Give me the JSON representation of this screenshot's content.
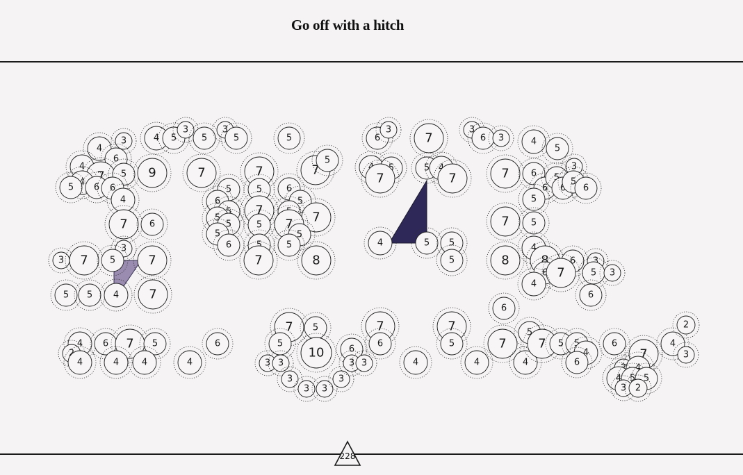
{
  "header": {
    "title": "Go off with a hitch"
  },
  "score": {
    "value": "228"
  },
  "colors": {
    "background": "#f5f3f4",
    "ink": "#1a1a1a",
    "selected_fill": "#2e2858",
    "light_fill": "#9a8bb0"
  },
  "nodes": [
    [
      178,
      203,
      "3"
    ],
    [
      143,
      214,
      "4"
    ],
    [
      167,
      229,
      "6"
    ],
    [
      118,
      240,
      "4"
    ],
    [
      145,
      254,
      "7"
    ],
    [
      178,
      251,
      "5"
    ],
    [
      118,
      263,
      "4"
    ],
    [
      102,
      270,
      "5"
    ],
    [
      139,
      270,
      "6"
    ],
    [
      162,
      271,
      "6"
    ],
    [
      177,
      288,
      "4"
    ],
    [
      219,
      249,
      "9"
    ],
    [
      225,
      199,
      "4"
    ],
    [
      250,
      199,
      "5"
    ],
    [
      267,
      187,
      "3"
    ],
    [
      294,
      199,
      "5"
    ],
    [
      324,
      187,
      "3"
    ],
    [
      340,
      199,
      "5"
    ],
    [
      416,
      199,
      "5"
    ],
    [
      290,
      249,
      "7"
    ],
    [
      373,
      247,
      "7"
    ],
    [
      454,
      245,
      "7"
    ],
    [
      471,
      231,
      "5"
    ],
    [
      329,
      273,
      "5"
    ],
    [
      373,
      273,
      "5"
    ],
    [
      416,
      272,
      "6"
    ],
    [
      313,
      290,
      "6"
    ],
    [
      432,
      290,
      "5"
    ],
    [
      329,
      305,
      "5"
    ],
    [
      373,
      303,
      "7"
    ],
    [
      416,
      305,
      "5"
    ],
    [
      313,
      314,
      "5"
    ],
    [
      455,
      313,
      "7"
    ],
    [
      329,
      323,
      "5"
    ],
    [
      373,
      324,
      "5"
    ],
    [
      416,
      323,
      "7"
    ],
    [
      431,
      338,
      "5"
    ],
    [
      313,
      337,
      "5"
    ],
    [
      329,
      353,
      "6"
    ],
    [
      373,
      353,
      "5"
    ],
    [
      416,
      353,
      "5"
    ],
    [
      372,
      375,
      "7"
    ],
    [
      455,
      375,
      "8"
    ],
    [
      178,
      323,
      "7"
    ],
    [
      219,
      323,
      "6"
    ],
    [
      178,
      358,
      "3"
    ],
    [
      88,
      375,
      "3"
    ],
    [
      121,
      375,
      "7"
    ],
    [
      162,
      375,
      "5"
    ],
    [
      219,
      375,
      "7"
    ],
    [
      95,
      425,
      "5"
    ],
    [
      129,
      425,
      "5"
    ],
    [
      167,
      425,
      "4"
    ],
    [
      220,
      424,
      "7"
    ],
    [
      543,
      199,
      "6"
    ],
    [
      559,
      187,
      "3"
    ],
    [
      617,
      199,
      "7"
    ],
    [
      534,
      241,
      "4"
    ],
    [
      563,
      242,
      "5"
    ],
    [
      547,
      257,
      "7"
    ],
    [
      614,
      242,
      "5"
    ],
    [
      635,
      242,
      "4"
    ],
    [
      651,
      257,
      "7"
    ],
    [
      547,
      350,
      "4"
    ],
    [
      614,
      350,
      "5"
    ],
    [
      650,
      350,
      "5"
    ],
    [
      650,
      375,
      "5"
    ],
    [
      679,
      187,
      "3"
    ],
    [
      695,
      199,
      "6"
    ],
    [
      721,
      199,
      "3"
    ],
    [
      768,
      204,
      "4"
    ],
    [
      802,
      214,
      "5"
    ],
    [
      727,
      250,
      "7"
    ],
    [
      768,
      250,
      "6"
    ],
    [
      826,
      240,
      "3"
    ],
    [
      784,
      271,
      "6"
    ],
    [
      801,
      256,
      "5"
    ],
    [
      810,
      271,
      "6"
    ],
    [
      825,
      262,
      "5"
    ],
    [
      843,
      271,
      "6"
    ],
    [
      768,
      287,
      "5"
    ],
    [
      727,
      319,
      "7"
    ],
    [
      768,
      321,
      "5"
    ],
    [
      727,
      375,
      "8"
    ],
    [
      768,
      357,
      "4"
    ],
    [
      784,
      375,
      "8"
    ],
    [
      824,
      376,
      "6"
    ],
    [
      857,
      376,
      "3"
    ],
    [
      784,
      393,
      "6"
    ],
    [
      807,
      393,
      "7"
    ],
    [
      854,
      393,
      "5"
    ],
    [
      881,
      393,
      "3"
    ],
    [
      768,
      409,
      "4"
    ],
    [
      850,
      425,
      "6"
    ],
    [
      725,
      444,
      "6"
    ],
    [
      115,
      495,
      "4"
    ],
    [
      103,
      509,
      "2"
    ],
    [
      115,
      522,
      "4"
    ],
    [
      152,
      495,
      "6"
    ],
    [
      187,
      495,
      "7"
    ],
    [
      223,
      495,
      "5"
    ],
    [
      167,
      522,
      "4"
    ],
    [
      208,
      522,
      "4"
    ],
    [
      273,
      522,
      "4"
    ],
    [
      313,
      495,
      "6"
    ],
    [
      416,
      471,
      "7"
    ],
    [
      454,
      472,
      "5"
    ],
    [
      403,
      495,
      "5"
    ],
    [
      455,
      508,
      "10"
    ],
    [
      385,
      523,
      "3"
    ],
    [
      404,
      523,
      "3"
    ],
    [
      417,
      546,
      "3"
    ],
    [
      441,
      560,
      "3"
    ],
    [
      467,
      560,
      "3"
    ],
    [
      491,
      546,
      "3"
    ],
    [
      506,
      503,
      "6"
    ],
    [
      506,
      523,
      "3"
    ],
    [
      524,
      523,
      "3"
    ],
    [
      547,
      470,
      "7"
    ],
    [
      547,
      495,
      "6"
    ],
    [
      598,
      522,
      "4"
    ],
    [
      650,
      470,
      "7"
    ],
    [
      650,
      495,
      "5"
    ],
    [
      686,
      522,
      "4"
    ],
    [
      723,
      495,
      "7"
    ],
    [
      756,
      522,
      "4"
    ],
    [
      762,
      479,
      "5"
    ],
    [
      780,
      495,
      "7"
    ],
    [
      807,
      495,
      "5"
    ],
    [
      830,
      495,
      "5"
    ],
    [
      843,
      508,
      "4"
    ],
    [
      830,
      522,
      "6"
    ],
    [
      884,
      495,
      "6"
    ],
    [
      926,
      510,
      "7"
    ],
    [
      968,
      495,
      "4"
    ],
    [
      987,
      468,
      "2"
    ],
    [
      987,
      511,
      "3"
    ],
    [
      897,
      530,
      "2"
    ],
    [
      918,
      530,
      "4"
    ],
    [
      890,
      545,
      "4"
    ],
    [
      910,
      545,
      "5"
    ],
    [
      930,
      545,
      "5"
    ],
    [
      897,
      559,
      "3"
    ],
    [
      918,
      559,
      "2"
    ]
  ],
  "highlighted_regions": [
    {
      "name": "selected-dark",
      "color": "#2e2858"
    },
    {
      "name": "selected-light",
      "color": "#9a8bb0"
    }
  ]
}
